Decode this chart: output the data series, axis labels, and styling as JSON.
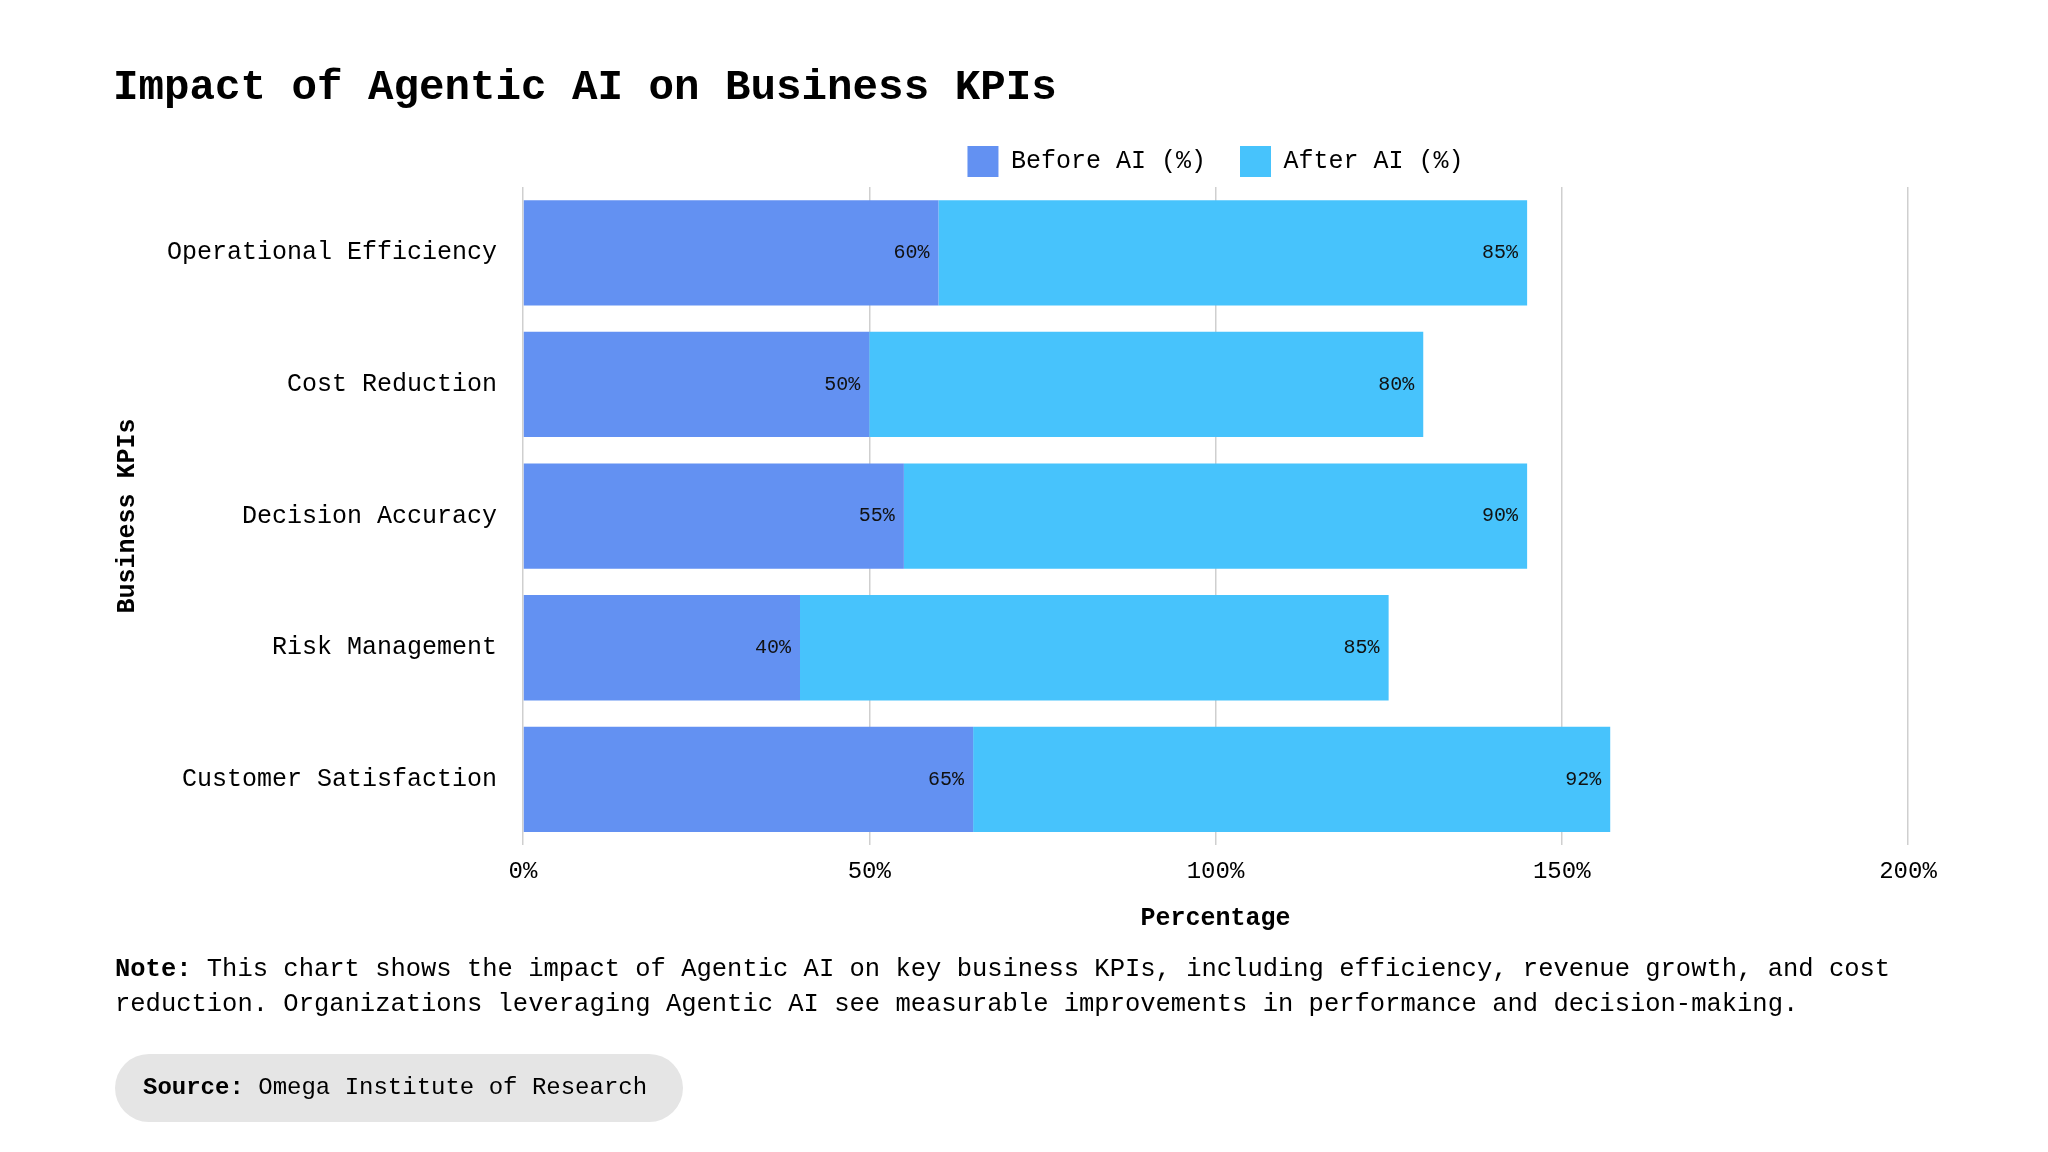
{
  "chart_data": {
    "type": "bar",
    "orientation": "horizontal",
    "stacked": true,
    "title": "Impact of Agentic AI on Business KPIs",
    "xlabel": "Percentage",
    "ylabel": "Business KPIs",
    "categories": [
      "Operational Efficiency",
      "Cost Reduction",
      "Decision Accuracy",
      "Risk Management",
      "Customer Satisfaction"
    ],
    "series": [
      {
        "name": "Before AI (%)",
        "color": "#6391f2",
        "values": [
          60,
          50,
          55,
          40,
          65
        ],
        "value_labels": [
          "60%",
          "50%",
          "55%",
          "40%",
          "65%"
        ]
      },
      {
        "name": "After AI (%)",
        "color": "#47c3fc",
        "values": [
          85,
          80,
          90,
          85,
          92
        ],
        "value_labels": [
          "85%",
          "80%",
          "90%",
          "85%",
          "92%"
        ]
      }
    ],
    "xlim": [
      0,
      200
    ],
    "xticks": [
      {
        "value": 0,
        "label": "0%"
      },
      {
        "value": 50,
        "label": "50%"
      },
      {
        "value": 100,
        "label": "100%"
      },
      {
        "value": 150,
        "label": "150%"
      },
      {
        "value": 200,
        "label": "200%"
      }
    ],
    "grid": "x",
    "legend": "top",
    "annotations": [
      "Note: This chart shows the impact of Agentic AI on key business KPIs, including efficiency, revenue growth, and cost reduction. Organizations leveraging Agentic AI see measurable improvements in performance and decision-making.",
      "Source: Omega Institute of Research"
    ]
  }
}
